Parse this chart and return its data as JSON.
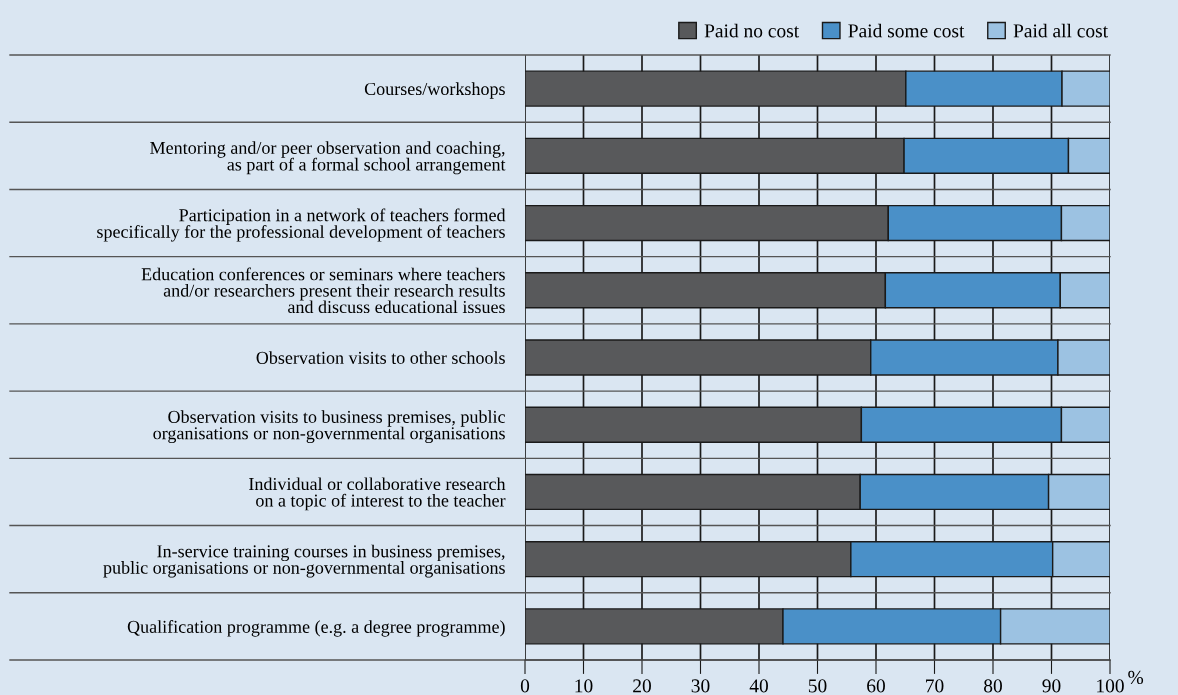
{
  "chart_data": {
    "type": "bar",
    "orientation": "horizontal",
    "stacked": true,
    "categories": [
      "Courses/workshops",
      "Mentoring and/or peer observation and coaching,\nas part of a formal school arrangement",
      "Participation in a network of teachers formed\nspecifically for the professional development of teachers",
      "Education conferences or seminars where teachers\nand/or researchers present their research results\nand discuss educational issues",
      "Observation visits to other schools",
      "Observation visits to business premises, public\norganisations or non-governmental organisations",
      "Individual or collaborative research\non a topic of interest to the teacher",
      "In-service training courses in business premises,\npublic organisations or non-governmental organisations",
      "Qualification programme (e.g. a degree programme)"
    ],
    "series": [
      {
        "name": "Paid no cost",
        "color": "#58595b",
        "values": [
          65.1,
          64.8,
          62.1,
          61.6,
          59.1,
          57.5,
          57.3,
          55.7,
          44.1
        ]
      },
      {
        "name": "Paid some cost",
        "color": "#4a90c8",
        "values": [
          26.7,
          28.1,
          29.6,
          29.9,
          32.0,
          34.2,
          32.2,
          34.5,
          37.2
        ]
      },
      {
        "name": "Paid all cost",
        "color": "#9cc2e2",
        "values": [
          8.2,
          7.1,
          8.3,
          8.5,
          8.9,
          8.3,
          10.5,
          9.8,
          18.7
        ]
      }
    ],
    "xlabel": "%",
    "xlim": [
      0,
      100
    ],
    "xticks": [
      0,
      10,
      20,
      30,
      40,
      50,
      60,
      70,
      80,
      90,
      100
    ],
    "grid": true,
    "legend": "top right"
  }
}
